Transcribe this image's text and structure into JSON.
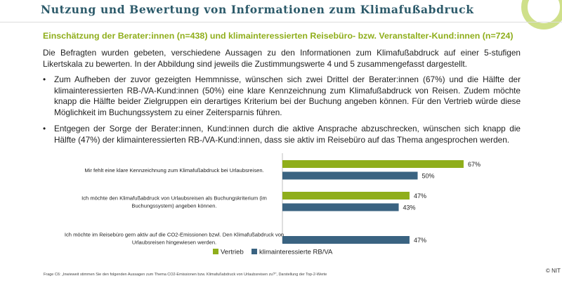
{
  "title": "Nutzung und Bewertung von Informationen zum Klimafußabdruck",
  "subtitle": "Einschätzung der Berater:innen (n=438) und klimainteressierten Reisebüro- bzw. Veranstalter-Kund:innen (n=724)",
  "intro": "Die Befragten wurden gebeten, verschiedene Aussagen zu den Informationen zum Klimafußabdruck auf einer 5-stufigen Likertskala zu bewerten. In der Abbildung sind jeweils die Zustimmungswerte 4 und 5 zusammengefasst dargestellt.",
  "bullets": [
    "Zum Aufheben der zuvor gezeigten Hemmnisse, wünschen sich zwei Drittel der Berater:innen (67%) und die Hälfte der klimainteressierten RB-/VA-Kund:innen (50%) eine klare Kennzeichnung zum Klimafußabdruck von Reisen. Zudem möchte knapp die Hälfte beider Zielgruppen ein derartiges Kriterium bei der Buchung angeben können. Für den Vertrieb würde diese Möglichkeit im Buchungssystem zu einer Zeitersparnis führen.",
    "Entgegen der Sorge der Berater:innen, Kund:innen durch die aktive Ansprache abzuschrecken, wünschen sich knapp die Hälfte (47%) der klimainteressierten RB-/VA-Kund:innen, dass sie aktiv im Reisebüro auf das Thema angesprochen werden."
  ],
  "bullet_symbol": "•",
  "chart_data": {
    "type": "bar",
    "orientation": "horizontal",
    "categories": [
      [
        "Mir fehlt eine klare Kennzeichnung zum Klimafußabdruck bei Urlaubsreisen."
      ],
      [
        "Ich möchte den Klimafußabdruck von Urlaubsreisen als Buchungskriterium (im",
        "Buchungssystem) angeben können."
      ],
      [
        "Ich möchte im Reisebüro gern aktiv auf die CO2-Emissionen bzwl. Den Klimafußabdruck von",
        "Urlaubsreisen hingewiesen werden."
      ]
    ],
    "series": [
      {
        "name": "Vertrieb",
        "color": "#8fae1b",
        "values": [
          67,
          null,
          null
        ]
      },
      {
        "name": "klimainteressierte RB/VA",
        "color": "#3a6381",
        "values": [
          50,
          43,
          47
        ]
      }
    ],
    "series_vertrieb_values_full": [
      67,
      47,
      null
    ],
    "value_suffix": "%",
    "xlim": [
      0,
      100
    ],
    "legend_position": "bottom"
  },
  "footnote_1": "Frage C6: „Inwieweit stimmen Sie den folgenden Aussagen zum Thema CO2-Emissionen bzw. Klimafußabdruck von Urlaubsreisen zu?\", Darstellung der Top-2-Werte",
  "footnote_2": "",
  "copyright": "© NIT"
}
